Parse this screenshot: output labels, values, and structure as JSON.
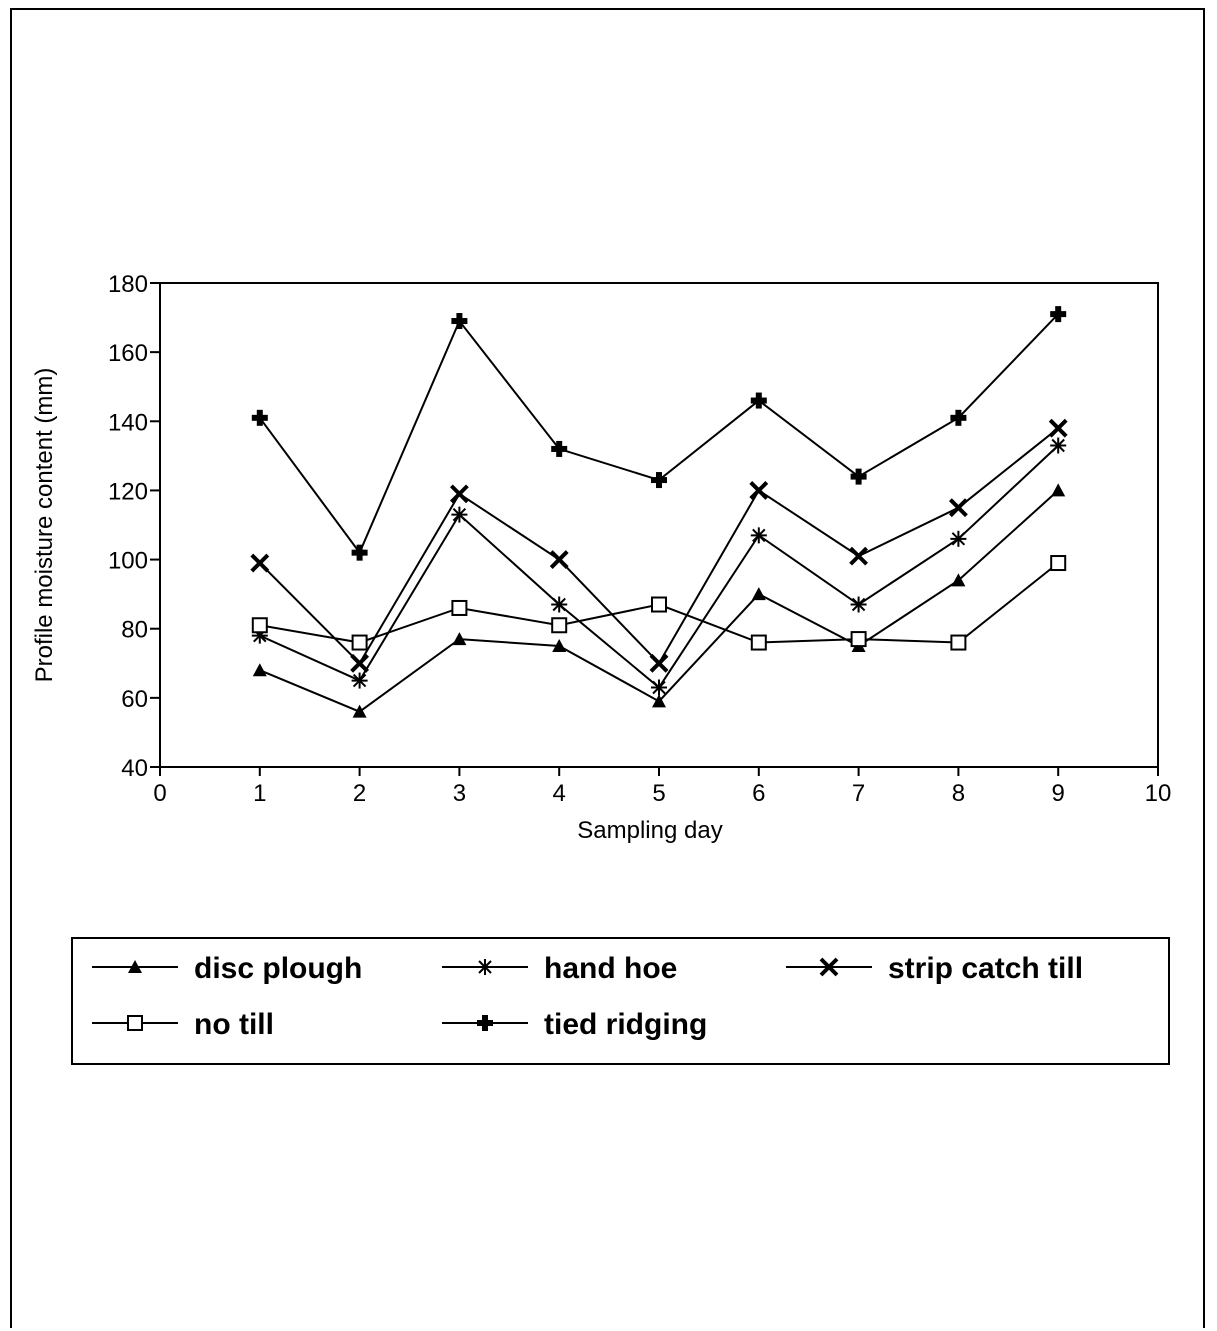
{
  "chart_data": {
    "type": "line",
    "title": "",
    "xlabel": "Sampling day",
    "ylabel": "Profile moisture content (mm)",
    "xlim": [
      0,
      10
    ],
    "ylim": [
      40,
      180
    ],
    "xticks": [
      0,
      1,
      2,
      3,
      4,
      5,
      6,
      7,
      8,
      9,
      10
    ],
    "yticks": [
      40,
      60,
      80,
      100,
      120,
      140,
      160,
      180
    ],
    "grid": false,
    "legend_position": "bottom",
    "x": [
      1,
      2,
      3,
      4,
      5,
      6,
      7,
      8,
      9
    ],
    "series": [
      {
        "name": "disc plough",
        "marker": "triangle",
        "values": [
          68,
          56,
          77,
          75,
          59,
          90,
          75,
          94,
          120
        ]
      },
      {
        "name": "hand hoe",
        "marker": "asterisk",
        "values": [
          78,
          65,
          113,
          87,
          63,
          107,
          87,
          106,
          133
        ]
      },
      {
        "name": "strip catch till",
        "marker": "x",
        "values": [
          99,
          70,
          119,
          100,
          70,
          120,
          101,
          115,
          138
        ]
      },
      {
        "name": "no till",
        "marker": "square",
        "values": [
          81,
          76,
          86,
          81,
          87,
          76,
          77,
          76,
          99
        ]
      },
      {
        "name": "tied ridging",
        "marker": "plus",
        "values": [
          141,
          102,
          169,
          132,
          123,
          146,
          124,
          141,
          171
        ]
      }
    ]
  }
}
